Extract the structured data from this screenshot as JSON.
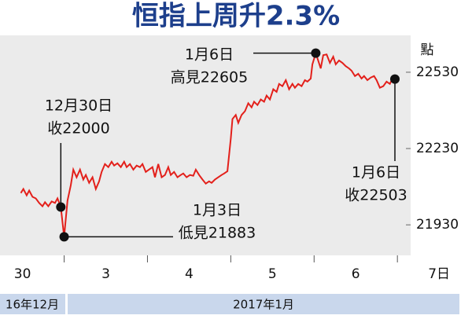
{
  "chart_data": {
    "type": "line",
    "title": "恒指上周升2.3%",
    "y_label": "點",
    "color": "#e3201b",
    "xlim": [
      0.23,
      5.14
    ],
    "ylim": [
      21810,
      22675
    ],
    "yticks": [
      21930,
      22230,
      22530
    ],
    "xticks": [
      {
        "value": 0.5,
        "label": "30"
      },
      {
        "value": 1.5,
        "label": "3"
      },
      {
        "value": 2.5,
        "label": "4"
      },
      {
        "value": 3.5,
        "label": "5"
      },
      {
        "value": 4.5,
        "label": "6"
      },
      {
        "value": 5.5,
        "label": "7日"
      }
    ],
    "months": [
      "16年12月",
      "2017年1月"
    ],
    "x": [
      0.48,
      0.51,
      0.55,
      0.58,
      0.62,
      0.66,
      0.7,
      0.74,
      0.77,
      0.81,
      0.85,
      0.89,
      0.92,
      0.96,
      1.0,
      1.04,
      1.08,
      1.11,
      1.15,
      1.19,
      1.23,
      1.26,
      1.3,
      1.34,
      1.38,
      1.42,
      1.45,
      1.49,
      1.53,
      1.57,
      1.6,
      1.64,
      1.68,
      1.72,
      1.75,
      1.79,
      1.83,
      1.87,
      1.91,
      1.94,
      1.98,
      2.06,
      2.09,
      2.13,
      2.17,
      2.21,
      2.25,
      2.28,
      2.32,
      2.36,
      2.4,
      2.43,
      2.47,
      2.51,
      2.55,
      2.58,
      2.62,
      2.66,
      2.7,
      2.74,
      2.77,
      2.81,
      2.85,
      2.89,
      2.92,
      2.96,
      3.0,
      3.02,
      3.06,
      3.09,
      3.13,
      3.17,
      3.21,
      3.25,
      3.28,
      3.32,
      3.36,
      3.4,
      3.43,
      3.47,
      3.51,
      3.55,
      3.58,
      3.62,
      3.66,
      3.7,
      3.74,
      3.77,
      3.81,
      3.85,
      3.89,
      3.92,
      3.96,
      3.98,
      4.02,
      4.04,
      4.08,
      4.11,
      4.15,
      4.19,
      4.23,
      4.26,
      4.3,
      4.34,
      4.38,
      4.42,
      4.45,
      4.49,
      4.53,
      4.57,
      4.6,
      4.64,
      4.68,
      4.72,
      4.75,
      4.79,
      4.83,
      4.87,
      4.91,
      4.94,
      4.97
    ],
    "values": [
      22055,
      22071,
      22046,
      22065,
      22040,
      22034,
      22016,
      22003,
      22019,
      22003,
      22022,
      22016,
      22034,
      22000,
      21883,
      22025,
      22086,
      22147,
      22117,
      22147,
      22108,
      22126,
      22095,
      22117,
      22071,
      22101,
      22138,
      22169,
      22157,
      22178,
      22163,
      22172,
      22157,
      22178,
      22157,
      22169,
      22147,
      22163,
      22157,
      22169,
      22138,
      22157,
      22117,
      22169,
      22117,
      22126,
      22157,
      22126,
      22138,
      22117,
      22126,
      22132,
      22117,
      22126,
      22123,
      22147,
      22126,
      22108,
      22092,
      22101,
      22095,
      22108,
      22117,
      22126,
      22132,
      22141,
      22270,
      22346,
      22362,
      22331,
      22362,
      22377,
      22408,
      22392,
      22414,
      22401,
      22423,
      22414,
      22438,
      22423,
      22463,
      22453,
      22484,
      22475,
      22499,
      22463,
      22484,
      22469,
      22484,
      22475,
      22499,
      22493,
      22505,
      22561,
      22605,
      22585,
      22545,
      22597,
      22600,
      22567,
      22591,
      22561,
      22576,
      22567,
      22554,
      22545,
      22536,
      22515,
      22524,
      22505,
      22515,
      22499,
      22509,
      22515,
      22499,
      22469,
      22475,
      22493,
      22484,
      22505,
      22503
    ],
    "annotations": [
      {
        "date": "12月30日",
        "label": "收22000"
      },
      {
        "date": "1月3日",
        "label": "低見21883"
      },
      {
        "date": "1月6日",
        "label": "高見22605"
      },
      {
        "date": "1月6日",
        "label": "收22503"
      }
    ]
  }
}
